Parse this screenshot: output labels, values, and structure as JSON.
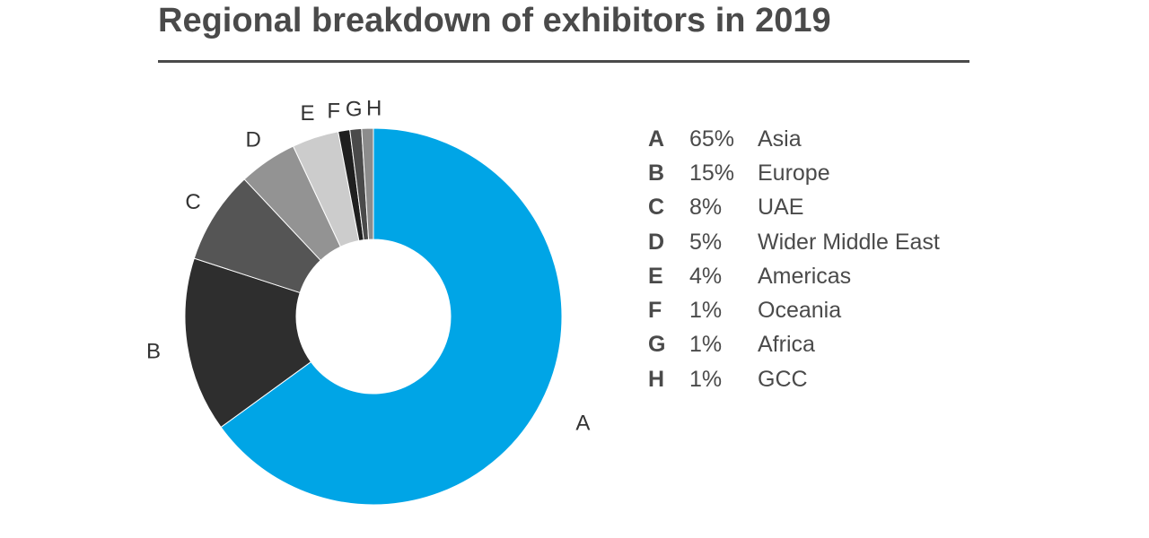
{
  "header": {
    "title": "Regional breakdown of exhibitors in 2019"
  },
  "chart_data": {
    "type": "pie",
    "style": "donut",
    "title": "Regional breakdown of exhibitors in 2019",
    "legend_placement": "right",
    "slices": [
      {
        "label": "A",
        "percent_label": "65%",
        "name": "Asia",
        "value": 65,
        "color": "#00a5e6"
      },
      {
        "label": "B",
        "percent_label": "15%",
        "name": "Europe",
        "value": 15,
        "color": "#2e2e2e"
      },
      {
        "label": "C",
        "percent_label": "8%",
        "name": "UAE",
        "value": 8,
        "color": "#555555"
      },
      {
        "label": "D",
        "percent_label": "5%",
        "name": "Wider Middle East",
        "value": 5,
        "color": "#939393"
      },
      {
        "label": "E",
        "percent_label": "4%",
        "name": "Americas",
        "value": 4,
        "color": "#cccccc"
      },
      {
        "label": "F",
        "percent_label": "1%",
        "name": "Oceania",
        "value": 1,
        "color": "#1f1f1f"
      },
      {
        "label": "G",
        "percent_label": "1%",
        "name": "Africa",
        "value": 1,
        "color": "#4a4a4a"
      },
      {
        "label": "H",
        "percent_label": "1%",
        "name": "GCC",
        "value": 1,
        "color": "#8c8c8c"
      }
    ]
  }
}
